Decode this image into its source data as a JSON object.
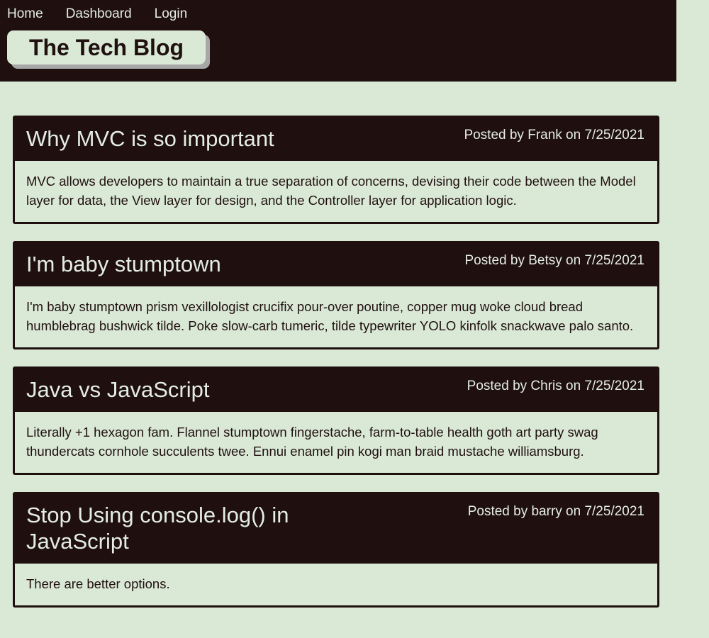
{
  "nav": {
    "items": [
      "Home",
      "Dashboard",
      "Login"
    ]
  },
  "brand": {
    "title": "The Tech Blog"
  },
  "posts": [
    {
      "title": "Why MVC is so important",
      "meta": "Posted by Frank on 7/25/2021",
      "body": "MVC allows developers to maintain a true separation of concerns, devising their code between the Model layer for data, the View layer for design, and the Controller layer for application logic."
    },
    {
      "title": "I'm baby stumptown",
      "meta": "Posted by Betsy on 7/25/2021",
      "body": "I'm baby stumptown prism vexillologist crucifix pour-over poutine, copper mug woke cloud bread humblebrag bushwick tilde. Poke slow-carb tumeric, tilde typewriter YOLO kinfolk snackwave palo santo."
    },
    {
      "title": "Java vs JavaScript",
      "meta": "Posted by Chris on 7/25/2021",
      "body": "Literally +1 hexagon fam. Flannel stumptown fingerstache, farm-to-table health goth art party swag thundercats cornhole succulents twee. Ennui enamel pin kogi man braid mustache williamsburg."
    },
    {
      "title": "Stop Using console.log() in JavaScript",
      "meta": "Posted by barry on 7/25/2021",
      "body": "There are better options."
    }
  ],
  "colors": {
    "background": "#d9e9d6",
    "dark": "#1f0f0f",
    "light_text": "#e4eee0",
    "shadow": "#a7a7a7"
  }
}
